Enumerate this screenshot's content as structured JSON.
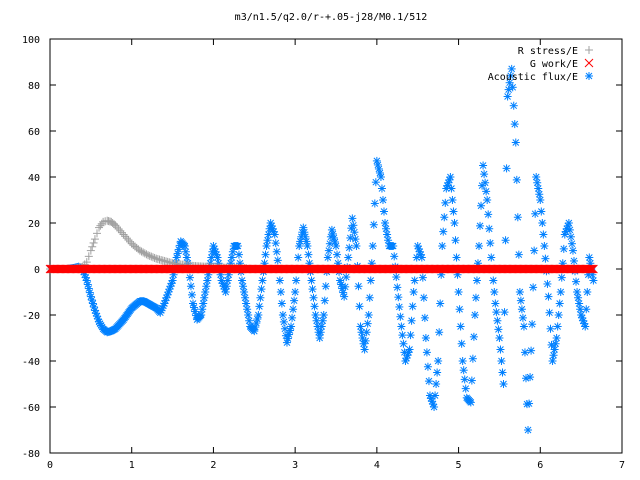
{
  "chart_data": {
    "type": "scatter",
    "title": "m3/n1.5/q2.0/r-+.05-j28/M0.1/512",
    "xlabel": "",
    "ylabel": "",
    "xlim": [
      0,
      7
    ],
    "ylim": [
      -80,
      100
    ],
    "xticks": [
      "0",
      "1",
      "2",
      "3",
      "4",
      "5",
      "6",
      "7"
    ],
    "yticks": [
      "-80",
      "-60",
      "-40",
      "-20",
      "0",
      "20",
      "40",
      "60",
      "80",
      "100"
    ],
    "grid": false,
    "legend_position": "top-right",
    "series": [
      {
        "name": "R stress/E",
        "marker": "plus",
        "color": "#a0a0a0",
        "x": [
          0.0,
          0.1,
          0.2,
          0.3,
          0.4,
          0.45,
          0.5,
          0.55,
          0.6,
          0.65,
          0.7,
          0.75,
          0.8,
          0.9,
          1.0,
          1.1,
          1.2,
          1.3,
          1.4,
          1.5,
          1.6,
          1.7,
          1.8,
          2.0,
          2.2,
          2.4
        ],
        "y": [
          0,
          0,
          0,
          0.2,
          1,
          3,
          8,
          13,
          18,
          20.5,
          21,
          20.5,
          19,
          15,
          11,
          8,
          6,
          4.5,
          3.5,
          2.5,
          2,
          1.5,
          1.2,
          0.8,
          0.5,
          0.3
        ]
      },
      {
        "name": "G work/E",
        "marker": "cross",
        "color": "#ff0000",
        "x": [
          0.0,
          0.5,
          1.0,
          1.5,
          2.0,
          2.5,
          3.0,
          3.5,
          4.0,
          4.5,
          5.0,
          5.5,
          6.0,
          6.5,
          6.65
        ],
        "y": [
          0,
          0,
          0,
          0,
          0,
          0,
          0,
          0,
          0,
          0,
          0,
          0,
          0,
          0,
          0
        ]
      },
      {
        "name": "Acoustic flux/E",
        "marker": "star",
        "color": "#0080ff",
        "x": [
          0.0,
          0.1,
          0.2,
          0.3,
          0.35,
          0.4,
          0.45,
          0.5,
          0.55,
          0.6,
          0.65,
          0.7,
          0.75,
          0.8,
          0.85,
          0.9,
          1.0,
          1.1,
          1.15,
          1.2,
          1.3,
          1.35,
          1.4,
          1.5,
          1.55,
          1.6,
          1.65,
          1.7,
          1.75,
          1.8,
          1.85,
          1.9,
          1.95,
          2.0,
          2.05,
          2.1,
          2.15,
          2.2,
          2.25,
          2.3,
          2.35,
          2.4,
          2.45,
          2.5,
          2.55,
          2.6,
          2.65,
          2.7,
          2.75,
          2.8,
          2.85,
          2.9,
          2.95,
          3.0,
          3.05,
          3.1,
          3.15,
          3.2,
          3.25,
          3.3,
          3.35,
          3.4,
          3.45,
          3.5,
          3.55,
          3.6,
          3.65,
          3.7,
          3.75,
          3.8,
          3.85,
          3.9,
          3.95,
          4.0,
          4.05,
          4.1,
          4.15,
          4.2,
          4.25,
          4.3,
          4.35,
          4.4,
          4.45,
          4.5,
          4.55,
          4.6,
          4.65,
          4.7,
          4.75,
          4.8,
          4.85,
          4.9,
          4.95,
          5.0,
          5.05,
          5.1,
          5.15,
          5.2,
          5.25,
          5.3,
          5.35,
          5.4,
          5.45,
          5.5,
          5.55,
          5.6,
          5.65,
          5.7,
          5.75,
          5.8,
          5.85,
          5.9,
          5.95,
          6.0,
          6.05,
          6.1,
          6.15,
          6.2,
          6.25,
          6.3,
          6.35,
          6.4,
          6.45,
          6.5,
          6.55,
          6.6,
          6.65
        ],
        "y": [
          0,
          0,
          0,
          0.5,
          1,
          0,
          -5,
          -12,
          -18,
          -23,
          -26,
          -27.5,
          -27,
          -26,
          -24,
          -22,
          -17,
          -14,
          -14,
          -15,
          -17,
          -19,
          -15,
          -5,
          5,
          12,
          10,
          0,
          -15,
          -22,
          -20,
          -10,
          0,
          10,
          5,
          -5,
          -10,
          0,
          10,
          10,
          -5,
          -15,
          -25,
          -27,
          -20,
          -5,
          10,
          20,
          15,
          0,
          -20,
          -32,
          -25,
          -10,
          10,
          18,
          10,
          -5,
          -20,
          -30,
          -20,
          5,
          17,
          10,
          -5,
          -12,
          5,
          22,
          10,
          -25,
          -35,
          -20,
          10,
          47,
          40,
          20,
          10,
          10,
          -8,
          -25,
          -40,
          -35,
          -10,
          10,
          5,
          -30,
          -55,
          -60,
          -40,
          10,
          35,
          40,
          20,
          -10,
          -40,
          -56,
          -58,
          -20,
          10,
          45,
          30,
          5,
          -15,
          -30,
          -50,
          75,
          87,
          55,
          -10,
          -25,
          -70,
          -24,
          40,
          30,
          10,
          -12,
          -40,
          -30,
          -10,
          15,
          20,
          8,
          -10,
          -20,
          -25,
          5,
          -5
        ]
      }
    ]
  }
}
